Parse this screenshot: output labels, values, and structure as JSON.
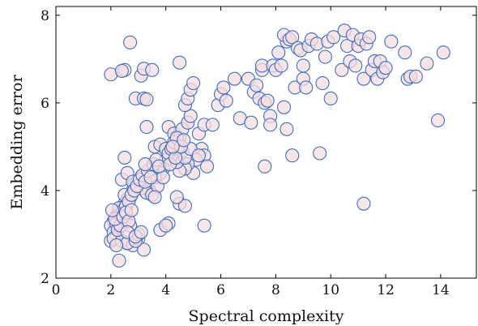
{
  "chart_data": {
    "type": "scatter",
    "xlabel": "Spectral complexity",
    "ylabel": "Embedding error",
    "xlim": [
      0,
      15.3
    ],
    "ylim": [
      2,
      8.2
    ],
    "xticks": [
      "0",
      "2",
      "4",
      "6",
      "8",
      "10",
      "12",
      "14"
    ],
    "yticks": [
      "2",
      "4",
      "6",
      "8"
    ],
    "grid": false,
    "marker": "open-circle",
    "colors": {
      "marker_edge": "#3a6fc4",
      "marker_fill": "#f6dcdf"
    },
    "points": [
      [
        2.0,
        6.65
      ],
      [
        2.5,
        6.75
      ],
      [
        2.4,
        6.73
      ],
      [
        2.7,
        7.38
      ],
      [
        3.1,
        6.62
      ],
      [
        3.2,
        6.78
      ],
      [
        3.5,
        6.75
      ],
      [
        2.9,
        6.1
      ],
      [
        3.2,
        6.1
      ],
      [
        3.3,
        6.08
      ],
      [
        4.5,
        6.92
      ],
      [
        3.3,
        5.45
      ],
      [
        3.6,
        5.0
      ],
      [
        3.8,
        5.05
      ],
      [
        4.0,
        4.95
      ],
      [
        4.1,
        5.45
      ],
      [
        4.3,
        5.3
      ],
      [
        4.5,
        5.2
      ],
      [
        4.6,
        5.4
      ],
      [
        4.8,
        5.55
      ],
      [
        4.9,
        5.7
      ],
      [
        4.7,
        5.95
      ],
      [
        4.8,
        6.1
      ],
      [
        4.9,
        6.3
      ],
      [
        5.0,
        6.45
      ],
      [
        5.2,
        5.3
      ],
      [
        5.3,
        4.95
      ],
      [
        5.4,
        4.8
      ],
      [
        5.5,
        4.55
      ],
      [
        5.4,
        5.5
      ],
      [
        5.1,
        4.7
      ],
      [
        5.0,
        4.4
      ],
      [
        4.8,
        4.6
      ],
      [
        4.7,
        4.5
      ],
      [
        4.5,
        4.45
      ],
      [
        4.4,
        4.65
      ],
      [
        4.2,
        4.8
      ],
      [
        4.0,
        4.7
      ],
      [
        3.9,
        4.5
      ],
      [
        3.8,
        4.4
      ],
      [
        3.6,
        4.3
      ],
      [
        3.5,
        4.5
      ],
      [
        3.4,
        4.0
      ],
      [
        3.3,
        4.1
      ],
      [
        3.1,
        4.3
      ],
      [
        3.0,
        4.2
      ],
      [
        2.9,
        4.15
      ],
      [
        2.8,
        4.0
      ],
      [
        2.7,
        3.85
      ],
      [
        2.6,
        3.8
      ],
      [
        2.5,
        3.7
      ],
      [
        2.4,
        3.6
      ],
      [
        2.3,
        3.5
      ],
      [
        2.2,
        3.4
      ],
      [
        2.1,
        3.3
      ],
      [
        2.0,
        3.2
      ],
      [
        2.1,
        3.05
      ],
      [
        2.2,
        2.95
      ],
      [
        2.0,
        2.85
      ],
      [
        2.1,
        2.9
      ],
      [
        2.4,
        2.85
      ],
      [
        2.6,
        2.8
      ],
      [
        2.8,
        2.75
      ],
      [
        3.0,
        2.9
      ],
      [
        3.2,
        2.65
      ],
      [
        2.3,
        2.4
      ],
      [
        2.6,
        2.8
      ],
      [
        2.9,
        2.85
      ],
      [
        3.0,
        3.0
      ],
      [
        2.5,
        3.35
      ],
      [
        2.7,
        3.2
      ],
      [
        2.3,
        3.6
      ],
      [
        2.5,
        3.9
      ],
      [
        2.4,
        4.25
      ],
      [
        2.6,
        4.4
      ],
      [
        2.5,
        4.75
      ],
      [
        2.8,
        4.2
      ],
      [
        3.1,
        4.05
      ],
      [
        3.3,
        3.95
      ],
      [
        3.5,
        3.9
      ],
      [
        3.7,
        4.1
      ],
      [
        3.9,
        4.3
      ],
      [
        4.1,
        4.85
      ],
      [
        4.2,
        4.95
      ],
      [
        4.3,
        5.1
      ],
      [
        4.4,
        5.2
      ],
      [
        4.6,
        4.9
      ],
      [
        4.7,
        4.75
      ],
      [
        4.9,
        4.95
      ],
      [
        3.8,
        3.1
      ],
      [
        4.1,
        3.25
      ],
      [
        4.0,
        3.2
      ],
      [
        4.5,
        3.7
      ],
      [
        4.7,
        3.65
      ],
      [
        4.4,
        3.85
      ],
      [
        5.4,
        3.2
      ],
      [
        5.7,
        5.5
      ],
      [
        5.9,
        5.95
      ],
      [
        6.0,
        6.2
      ],
      [
        6.1,
        6.35
      ],
      [
        6.2,
        6.05
      ],
      [
        6.5,
        6.55
      ],
      [
        6.7,
        5.65
      ],
      [
        7.0,
        6.55
      ],
      [
        7.1,
        5.55
      ],
      [
        7.2,
        6.25
      ],
      [
        7.3,
        6.4
      ],
      [
        7.4,
        6.1
      ],
      [
        7.5,
        6.75
      ],
      [
        7.6,
        6.0
      ],
      [
        7.5,
        6.85
      ],
      [
        7.7,
        6.05
      ],
      [
        7.8,
        5.7
      ],
      [
        7.8,
        5.5
      ],
      [
        7.9,
        6.85
      ],
      [
        8.0,
        6.75
      ],
      [
        8.1,
        7.15
      ],
      [
        8.2,
        6.85
      ],
      [
        8.3,
        5.9
      ],
      [
        8.4,
        7.4
      ],
      [
        8.3,
        7.55
      ],
      [
        8.5,
        7.45
      ],
      [
        8.4,
        5.4
      ],
      [
        8.6,
        7.5
      ],
      [
        8.6,
        4.8
      ],
      [
        8.7,
        6.35
      ],
      [
        8.8,
        7.25
      ],
      [
        8.9,
        7.2
      ],
      [
        9.0,
        6.85
      ],
      [
        9.0,
        6.55
      ],
      [
        9.1,
        6.35
      ],
      [
        9.2,
        7.3
      ],
      [
        9.3,
        7.45
      ],
      [
        9.5,
        7.35
      ],
      [
        9.6,
        4.85
      ],
      [
        9.7,
        6.45
      ],
      [
        9.8,
        7.05
      ],
      [
        9.9,
        7.4
      ],
      [
        10.0,
        6.1
      ],
      [
        10.1,
        7.5
      ],
      [
        10.4,
        6.75
      ],
      [
        10.5,
        7.65
      ],
      [
        10.6,
        7.3
      ],
      [
        10.7,
        6.95
      ],
      [
        10.8,
        7.55
      ],
      [
        10.9,
        6.85
      ],
      [
        11.0,
        7.3
      ],
      [
        11.1,
        7.45
      ],
      [
        11.2,
        6.55
      ],
      [
        11.3,
        7.35
      ],
      [
        11.4,
        7.5
      ],
      [
        11.5,
        6.75
      ],
      [
        11.6,
        6.95
      ],
      [
        11.7,
        6.55
      ],
      [
        11.8,
        6.95
      ],
      [
        11.9,
        6.7
      ],
      [
        12.0,
        6.8
      ],
      [
        12.2,
        7.4
      ],
      [
        12.7,
        7.15
      ],
      [
        12.8,
        6.55
      ],
      [
        12.9,
        6.6
      ],
      [
        13.1,
        6.6
      ],
      [
        13.5,
        6.9
      ],
      [
        14.1,
        7.15
      ],
      [
        13.9,
        5.6
      ],
      [
        11.2,
        3.7
      ],
      [
        7.6,
        4.55
      ],
      [
        5.2,
        4.8
      ],
      [
        2.2,
        3.25
      ],
      [
        2.35,
        3.45
      ],
      [
        2.45,
        3.55
      ],
      [
        2.55,
        3.65
      ],
      [
        2.65,
        3.75
      ],
      [
        2.75,
        3.9
      ],
      [
        2.85,
        4.0
      ],
      [
        2.95,
        4.1
      ],
      [
        3.05,
        4.25
      ],
      [
        3.15,
        4.35
      ],
      [
        3.25,
        4.2
      ],
      [
        3.35,
        4.45
      ],
      [
        3.45,
        4.3
      ],
      [
        3.55,
        4.6
      ],
      [
        3.65,
        4.7
      ],
      [
        3.75,
        4.55
      ],
      [
        2.25,
        3.1
      ],
      [
        2.35,
        3.2
      ],
      [
        2.15,
        3.35
      ],
      [
        2.45,
        3.4
      ],
      [
        2.55,
        3.5
      ],
      [
        2.65,
        3.3
      ],
      [
        2.75,
        3.55
      ],
      [
        2.6,
        3.05
      ],
      [
        2.9,
        2.95
      ],
      [
        3.1,
        3.05
      ],
      [
        2.2,
        2.75
      ],
      [
        2.05,
        3.55
      ],
      [
        3.25,
        4.6
      ],
      [
        3.6,
        3.85
      ],
      [
        4.15,
        4.6
      ],
      [
        4.35,
        4.75
      ],
      [
        4.55,
        5.0
      ],
      [
        4.65,
        5.15
      ],
      [
        4.25,
        5.0
      ]
    ]
  }
}
